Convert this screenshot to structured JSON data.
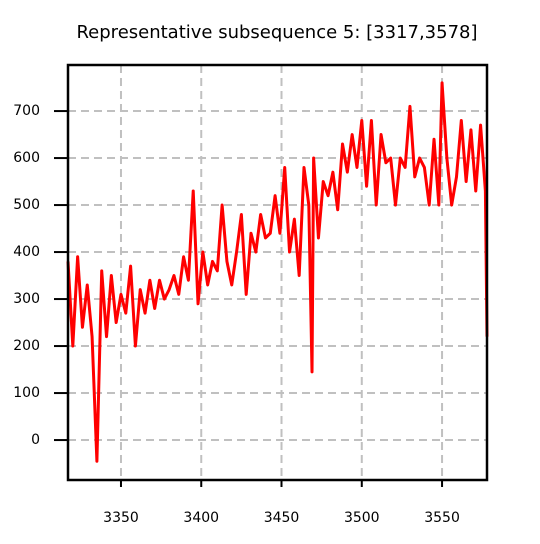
{
  "chart_data": {
    "type": "line",
    "title": "Representative subsequence 5: [3317,3578]",
    "x": [
      3317,
      3320,
      3323,
      3326,
      3329,
      3332,
      3335,
      3338,
      3341,
      3344,
      3347,
      3350,
      3353,
      3356,
      3359,
      3362,
      3365,
      3368,
      3371,
      3374,
      3377,
      3380,
      3383,
      3386,
      3389,
      3392,
      3395,
      3398,
      3401,
      3404,
      3407,
      3410,
      3413,
      3416,
      3419,
      3422,
      3425,
      3428,
      3431,
      3434,
      3437,
      3440,
      3443,
      3446,
      3449,
      3452,
      3455,
      3458,
      3461,
      3464,
      3467,
      3469,
      3470,
      3473,
      3476,
      3479,
      3482,
      3485,
      3488,
      3491,
      3494,
      3497,
      3500,
      3503,
      3506,
      3509,
      3512,
      3515,
      3518,
      3521,
      3524,
      3527,
      3530,
      3533,
      3536,
      3539,
      3542,
      3545,
      3548,
      3550,
      3553,
      3556,
      3559,
      3562,
      3565,
      3568,
      3571,
      3574,
      3577,
      3578
    ],
    "series": [
      {
        "color": "#ff0000",
        "values": [
          380,
          200,
          390,
          240,
          330,
          220,
          -45,
          360,
          220,
          350,
          250,
          310,
          270,
          370,
          200,
          320,
          270,
          340,
          280,
          340,
          300,
          320,
          350,
          310,
          390,
          340,
          530,
          290,
          400,
          330,
          380,
          360,
          500,
          380,
          330,
          400,
          480,
          310,
          440,
          400,
          480,
          430,
          440,
          520,
          440,
          580,
          400,
          470,
          350,
          580,
          500,
          145,
          600,
          430,
          550,
          520,
          570,
          490,
          630,
          570,
          650,
          580,
          680,
          540,
          680,
          500,
          650,
          590,
          600,
          500,
          600,
          580,
          710,
          560,
          600,
          580,
          500,
          640,
          500,
          760,
          600,
          500,
          560,
          680,
          550,
          660,
          530,
          670,
          530,
          220
        ]
      }
    ],
    "xlim": [
      3317,
      3578
    ],
    "ylim": [
      -85,
      798
    ],
    "xticks": [
      3350,
      3400,
      3450,
      3500,
      3550
    ],
    "yticks": [
      0,
      100,
      200,
      300,
      400,
      500,
      600,
      700
    ],
    "grid": true
  }
}
